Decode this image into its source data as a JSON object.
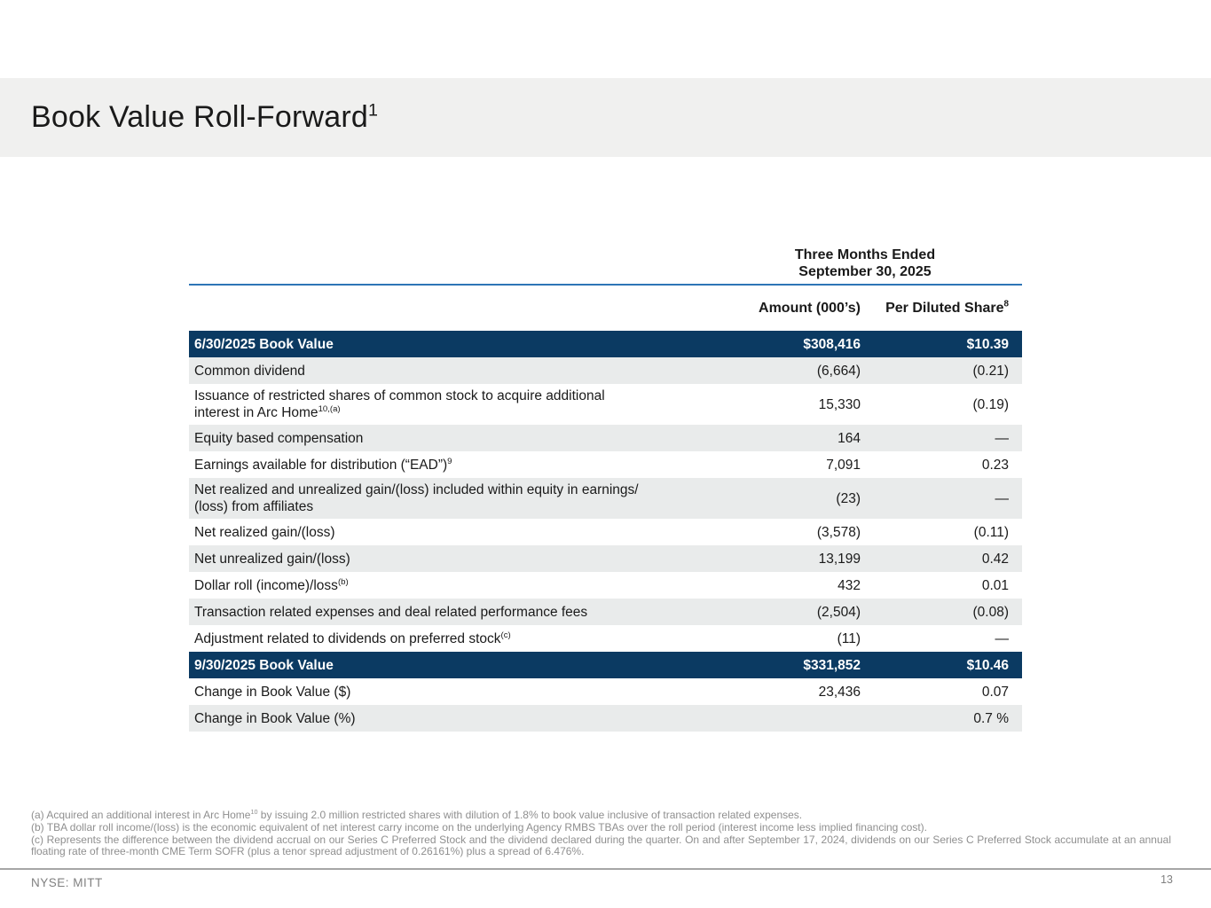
{
  "header": {
    "title": "Book Value Roll-Forward",
    "title_sup": "1"
  },
  "table": {
    "period_header": {
      "line1": "Three Months Ended",
      "line2": "September 30, 2025"
    },
    "columns": {
      "amount": "Amount (000’s)",
      "per_share": "Per Diluted Share",
      "per_share_sup": "8"
    },
    "rows": [
      {
        "label": "6/30/2025 Book Value",
        "sup": "",
        "amount": "$308,416",
        "per_share": "$10.39",
        "variant": "dark"
      },
      {
        "label": "Common dividend",
        "sup": "",
        "amount": "(6,664)",
        "per_share": "(0.21)",
        "variant": "gray"
      },
      {
        "label": "Issuance of restricted shares of common stock to acquire additional\ninterest in Arc Home",
        "sup": "10,(a)",
        "amount": "15,330",
        "per_share": "(0.19)",
        "variant": "white"
      },
      {
        "label": "Equity based compensation",
        "sup": "",
        "amount": "164",
        "per_share": "—",
        "variant": "gray"
      },
      {
        "label": "Earnings available for distribution (“EAD”)",
        "sup": "9",
        "amount": "7,091",
        "per_share": "0.23",
        "variant": "white"
      },
      {
        "label": "Net realized and unrealized gain/(loss) included within equity in earnings/\n(loss) from affiliates",
        "sup": "",
        "amount": "(23)",
        "per_share": "—",
        "variant": "gray"
      },
      {
        "label": "Net realized gain/(loss)",
        "sup": "",
        "amount": "(3,578)",
        "per_share": "(0.11)",
        "variant": "white"
      },
      {
        "label": "Net unrealized gain/(loss)",
        "sup": "",
        "amount": "13,199",
        "per_share": "0.42",
        "variant": "gray"
      },
      {
        "label": "Dollar roll (income)/loss",
        "sup": "(b)",
        "amount": "432",
        "per_share": "0.01",
        "variant": "white"
      },
      {
        "label": "Transaction related expenses and deal related performance fees",
        "sup": "",
        "amount": "(2,504)",
        "per_share": "(0.08)",
        "variant": "gray"
      },
      {
        "label": "Adjustment related to dividends on preferred stock",
        "sup": "(c)",
        "amount": "(11)",
        "per_share": "—",
        "variant": "white"
      },
      {
        "label": "9/30/2025 Book Value",
        "sup": "",
        "amount": "$331,852",
        "per_share": "$10.46",
        "variant": "dark"
      },
      {
        "label": "Change in Book Value ($)",
        "sup": "",
        "amount": "23,436",
        "per_share": "0.07",
        "variant": "white"
      },
      {
        "label": "Change in Book Value (%)",
        "sup": "",
        "amount": "",
        "per_share": "0.7 %",
        "variant": "gray"
      }
    ]
  },
  "footnotes": [
    {
      "pre": "(a) Acquired an additional interest in Arc Home",
      "sup": "10",
      "post": " by issuing 2.0 million restricted shares with dilution of 1.8% to book value inclusive of transaction related expenses."
    },
    {
      "pre": "(b) TBA dollar roll income/(loss) is the economic equivalent of net interest carry income on the underlying Agency RMBS TBAs over the roll period (interest income less implied financing cost).",
      "sup": "",
      "post": ""
    },
    {
      "pre": "(c) Represents the difference between the dividend accrual on our Series C Preferred Stock and the dividend declared during the quarter. On and after September 17, 2024, dividends on our Series C Preferred Stock accumulate at an annual floating rate of three-month CME Term SOFR (plus a tenor spread adjustment of 0.26161%) plus a spread of 6.476%.",
      "sup": "",
      "post": ""
    }
  ],
  "footer": {
    "ticker": "NYSE: MITT",
    "page_number": "13"
  },
  "colors": {
    "navy_row": "#0b3a62",
    "gray_row": "#e9ebeb",
    "blue_rule": "#2e75b6",
    "banner_gray": "#f0f0ef",
    "footnote_gray": "#8f8f8f"
  }
}
